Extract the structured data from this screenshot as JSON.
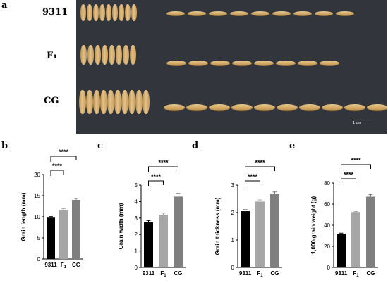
{
  "photo": {
    "panel": "a",
    "rows": [
      {
        "label": "9311",
        "grains": 9
      },
      {
        "label": "F₁",
        "grains": 8
      },
      {
        "label": "CG",
        "grains": 10
      }
    ],
    "scale_label": "1 cm"
  },
  "chart_data": [
    {
      "panel": "b",
      "type": "bar",
      "categories": [
        "9311",
        "F1",
        "CG"
      ],
      "values": [
        9.8,
        11.6,
        14.0
      ],
      "errors": [
        0.25,
        0.35,
        0.35
      ],
      "colors": [
        "#000000",
        "#a6a6a6",
        "#7f7f7f"
      ],
      "ylabel": "Grain length (mm)",
      "ylim": [
        0,
        20
      ],
      "ticks": [
        0,
        5,
        10,
        15,
        20
      ],
      "significance": [
        {
          "from": 0,
          "to": 1,
          "label": "****"
        },
        {
          "from": 0,
          "to": 2,
          "label": "****"
        }
      ]
    },
    {
      "panel": "c",
      "type": "bar",
      "categories": [
        "9311",
        "F1",
        "CG"
      ],
      "values": [
        2.75,
        3.2,
        4.3
      ],
      "errors": [
        0.1,
        0.1,
        0.2
      ],
      "colors": [
        "#000000",
        "#a6a6a6",
        "#7f7f7f"
      ],
      "ylabel": "Grain width (mm)",
      "ylim": [
        0,
        5
      ],
      "ticks": [
        0,
        1,
        2,
        3,
        4,
        5
      ],
      "significance": [
        {
          "from": 0,
          "to": 1,
          "label": "****"
        },
        {
          "from": 0,
          "to": 2,
          "label": "****"
        }
      ]
    },
    {
      "panel": "d",
      "type": "bar",
      "categories": [
        "9311",
        "F1",
        "CG"
      ],
      "values": [
        2.05,
        2.4,
        2.68
      ],
      "errors": [
        0.05,
        0.06,
        0.07
      ],
      "colors": [
        "#000000",
        "#a6a6a6",
        "#7f7f7f"
      ],
      "ylabel": "Grain thickness (mm)",
      "ylim": [
        0,
        3
      ],
      "ticks": [
        0,
        1,
        2,
        3
      ],
      "significance": [
        {
          "from": 0,
          "to": 1,
          "label": "****"
        },
        {
          "from": 0,
          "to": 2,
          "label": "****"
        }
      ]
    },
    {
      "panel": "e",
      "type": "bar",
      "categories": [
        "9311",
        "F1",
        "CG"
      ],
      "values": [
        32,
        52.5,
        67
      ],
      "errors": [
        0.5,
        0.5,
        2.0
      ],
      "colors": [
        "#000000",
        "#a6a6a6",
        "#7f7f7f"
      ],
      "ylabel": "1,000-grain weight (g)",
      "ylim": [
        0,
        80
      ],
      "ticks": [
        0,
        20,
        40,
        60,
        80
      ],
      "significance": [
        {
          "from": 0,
          "to": 1,
          "label": "****"
        },
        {
          "from": 0,
          "to": 2,
          "label": "****"
        }
      ]
    }
  ]
}
